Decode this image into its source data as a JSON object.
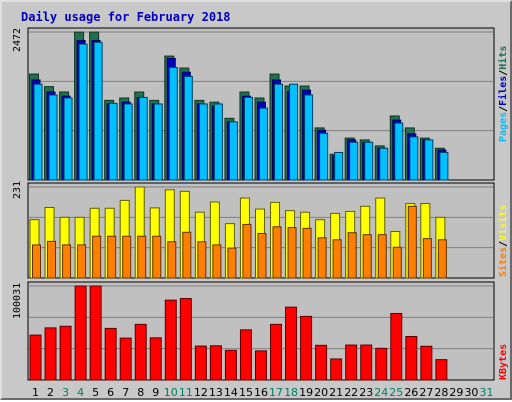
{
  "chart_data": {
    "type": "bar",
    "title": "Daily usage for February 2018",
    "categories": [
      "1",
      "2",
      "3",
      "4",
      "5",
      "6",
      "7",
      "8",
      "9",
      "10",
      "11",
      "12",
      "13",
      "14",
      "15",
      "16",
      "17",
      "18",
      "19",
      "20",
      "21",
      "22",
      "23",
      "24",
      "25",
      "26",
      "27",
      "28",
      "29",
      "30",
      "31"
    ],
    "weekend_days": [
      3,
      4,
      10,
      11,
      17,
      18,
      24,
      25,
      31
    ],
    "series": [
      {
        "name": "Hits",
        "color": "#207050",
        "panel": "top",
        "values": [
          1770,
          1560,
          1470,
          2470,
          2470,
          1330,
          1370,
          1470,
          1330,
          2070,
          1870,
          1330,
          1300,
          1030,
          1470,
          1370,
          1770,
          1570,
          1570,
          870,
          430,
          700,
          670,
          570,
          1070,
          870,
          700,
          530,
          0,
          0,
          0
        ]
      },
      {
        "name": "Files",
        "color": "#0000c0",
        "panel": "top",
        "values": [
          1670,
          1470,
          1400,
          2330,
          2330,
          1270,
          1300,
          1370,
          1270,
          2030,
          1800,
          1270,
          1230,
          970,
          1400,
          1300,
          1670,
          1470,
          1500,
          830,
          400,
          670,
          630,
          530,
          1000,
          770,
          670,
          500,
          0,
          0,
          0
        ]
      },
      {
        "name": "Pages",
        "color": "#00c0ff",
        "panel": "top",
        "values": [
          1600,
          1420,
          1370,
          2270,
          2300,
          1280,
          1270,
          1380,
          1270,
          1880,
          1730,
          1270,
          1270,
          970,
          1380,
          1200,
          1600,
          1600,
          1420,
          780,
          460,
          630,
          630,
          530,
          950,
          720,
          670,
          460,
          0,
          0,
          0
        ]
      },
      {
        "name": "Visits",
        "color": "#ffff00",
        "panel": "middle",
        "values": [
          148,
          179,
          154,
          154,
          177,
          177,
          197,
          231,
          178,
          224,
          220,
          167,
          193,
          138,
          203,
          175,
          192,
          171,
          167,
          148,
          164,
          169,
          182,
          203,
          118,
          189,
          189,
          154,
          0,
          0,
          0
        ]
      },
      {
        "name": "Sites",
        "color": "#ff8000",
        "panel": "middle",
        "values": [
          84,
          93,
          84,
          84,
          106,
          106,
          106,
          106,
          106,
          92,
          116,
          92,
          84,
          76,
          136,
          113,
          130,
          128,
          126,
          102,
          97,
          115,
          110,
          110,
          78,
          182,
          100,
          97,
          0,
          0,
          0
        ]
      },
      {
        "name": "KBytes",
        "color": "#ff0000",
        "panel": "bottom",
        "values": [
          47800,
          55500,
          57200,
          100031,
          100031,
          54900,
          44600,
          59200,
          44900,
          85000,
          86700,
          36100,
          36400,
          31600,
          53400,
          31000,
          59200,
          77500,
          67700,
          36900,
          22400,
          37200,
          37200,
          33700,
          70800,
          46300,
          35900,
          21700,
          0,
          0,
          0
        ]
      }
    ],
    "axes": [
      {
        "panel": "top",
        "ymax_label": "2472",
        "ymax": 2472
      },
      {
        "panel": "middle",
        "ymax_label": "231",
        "ymax": 231
      },
      {
        "panel": "bottom",
        "ymax_label": "100031",
        "ymax": 100031
      }
    ],
    "right_labels": {
      "top": [
        {
          "text": "Pages",
          "color": "#00c0ff"
        },
        {
          "text": "Files",
          "color": "#0000c0"
        },
        {
          "text": "Hits",
          "color": "#207050"
        }
      ],
      "middle": [
        {
          "text": "Sites",
          "color": "#ff8000"
        },
        {
          "text": "Visits",
          "color": "#ffff00"
        }
      ],
      "bottom": [
        {
          "text": "KBytes",
          "color": "#ff0000"
        }
      ]
    },
    "separator": "/",
    "colors": {
      "title": "#0000c0",
      "background": "#c0c0c0",
      "weekend_label": "#00805c",
      "weekday_label": "#000000",
      "gridline": "#808080"
    }
  }
}
